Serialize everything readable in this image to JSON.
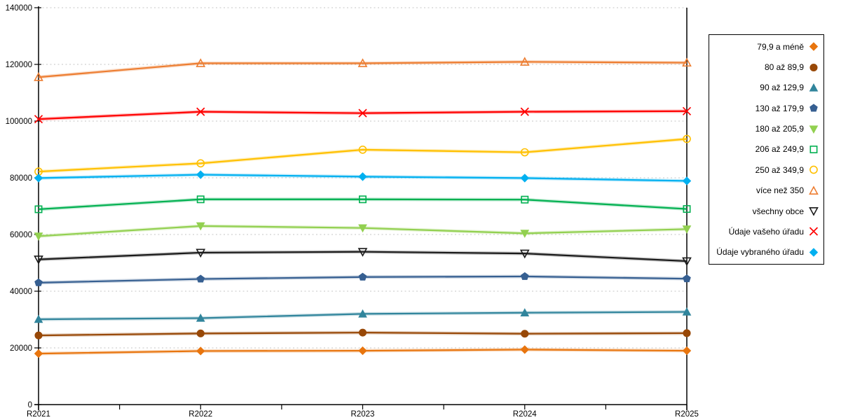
{
  "chart_data": {
    "type": "line",
    "title": "",
    "xlabel": "",
    "ylabel": "",
    "categories": [
      "R2021",
      "R2022",
      "R2023",
      "R2024",
      "R2025"
    ],
    "ylim": [
      0,
      140000
    ],
    "ytick_step": 20000,
    "grid": "horizontal-dashed",
    "legend_position": "right",
    "series": [
      {
        "name": "79,9 a méně",
        "color": "#E8750E",
        "marker": "diamond",
        "fill": true,
        "values": [
          18000,
          18900,
          19000,
          19400,
          19000
        ]
      },
      {
        "name": "80 až 89,9",
        "color": "#984807",
        "marker": "circle",
        "fill": true,
        "values": [
          24400,
          25100,
          25400,
          25000,
          25200
        ]
      },
      {
        "name": "90 až 129,9",
        "color": "#31859C",
        "marker": "triangle-up",
        "fill": true,
        "values": [
          30100,
          30500,
          32000,
          32400,
          32700
        ]
      },
      {
        "name": "130 až 179,9",
        "color": "#365F91",
        "marker": "pentagon",
        "fill": true,
        "values": [
          43000,
          44300,
          45000,
          45200,
          44400
        ]
      },
      {
        "name": "180 až 205,9",
        "color": "#92D050",
        "marker": "triangle-down",
        "fill": true,
        "values": [
          59400,
          63000,
          62300,
          60400,
          61900
        ]
      },
      {
        "name": "206 až 249,9",
        "color": "#00B050",
        "marker": "square",
        "fill": false,
        "values": [
          68900,
          72400,
          72400,
          72300,
          69000
        ]
      },
      {
        "name": "250 až 349,9",
        "color": "#FFC000",
        "marker": "circle",
        "fill": false,
        "values": [
          82200,
          85100,
          89900,
          89000,
          93700
        ]
      },
      {
        "name": "více než 350",
        "color": "#ED7D31",
        "marker": "triangle-up",
        "fill": false,
        "values": [
          115500,
          120400,
          120400,
          120900,
          120600
        ]
      },
      {
        "name": "všechny obce",
        "color": "#1A1A1A",
        "marker": "triangle-down",
        "fill": false,
        "values": [
          51200,
          53600,
          53900,
          53300,
          50600
        ]
      },
      {
        "name": "Údaje vašeho úřadu",
        "color": "#FF0000",
        "marker": "x",
        "fill": false,
        "values": [
          100700,
          103300,
          102800,
          103300,
          103500
        ]
      },
      {
        "name": "Údaje vybraného úřadu",
        "color": "#00B0F0",
        "marker": "diamond",
        "fill": true,
        "values": [
          79900,
          81100,
          80400,
          79900,
          78900
        ]
      }
    ]
  },
  "axes": {
    "y_tick_labels": [
      "0",
      "20000",
      "40000",
      "60000",
      "80000",
      "100000",
      "120000",
      "140000"
    ],
    "x_tick_labels": [
      "R2021",
      "R2022",
      "R2023",
      "R2024",
      "R2025"
    ]
  }
}
